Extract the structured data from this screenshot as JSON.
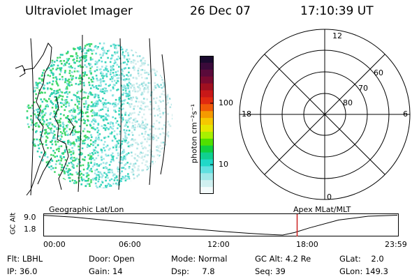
{
  "header": {
    "instrument": "Ultraviolet Imager",
    "date": "26 Dec 07",
    "time": "17:10:39 UT"
  },
  "colorbar": {
    "unit_label": "photon cm⁻²s⁻¹",
    "ticks": [
      "100",
      "10"
    ],
    "colors": [
      "#1a0a2e",
      "#3a0a3a",
      "#5a0a3a",
      "#7a0a30",
      "#a01020",
      "#c81818",
      "#e02a10",
      "#f05a08",
      "#f59a00",
      "#f5c800",
      "#e6e600",
      "#a8f000",
      "#50e000",
      "#10d040",
      "#10d090",
      "#20d8c8",
      "#60e0e0",
      "#a0e8e8",
      "#d0f0f0",
      "#f4fbfb"
    ]
  },
  "globe": {
    "label": "Geographic Lat/Lon"
  },
  "polar": {
    "label": "Apex  MLat/MLT",
    "mlt_labels": {
      "top": "12",
      "right": "6",
      "left": "18",
      "bottom": "0"
    },
    "lat_labels": [
      "60",
      "70",
      "80"
    ]
  },
  "altitude_plot": {
    "ylabel": "GC Alt",
    "yticks": [
      "9.0",
      "1.8"
    ],
    "xticks": [
      "00:00",
      "06:00",
      "12:00",
      "18:00",
      "23:59"
    ],
    "marker_time_hours": 17.18,
    "marker_color": "#cc2222"
  },
  "info": {
    "filter": "Flt: LBHL",
    "ip": "IP: 36.0",
    "door": "Door: Open",
    "gain": "Gain: 14",
    "mode": "Mode: Normal",
    "dsp": "Dsp:     7.8",
    "gc_alt": "GC Alt: 4.2 Re",
    "seq": "Seq: 39",
    "glat": "GLat:    2.0",
    "glon": "GLon: 149.3"
  }
}
